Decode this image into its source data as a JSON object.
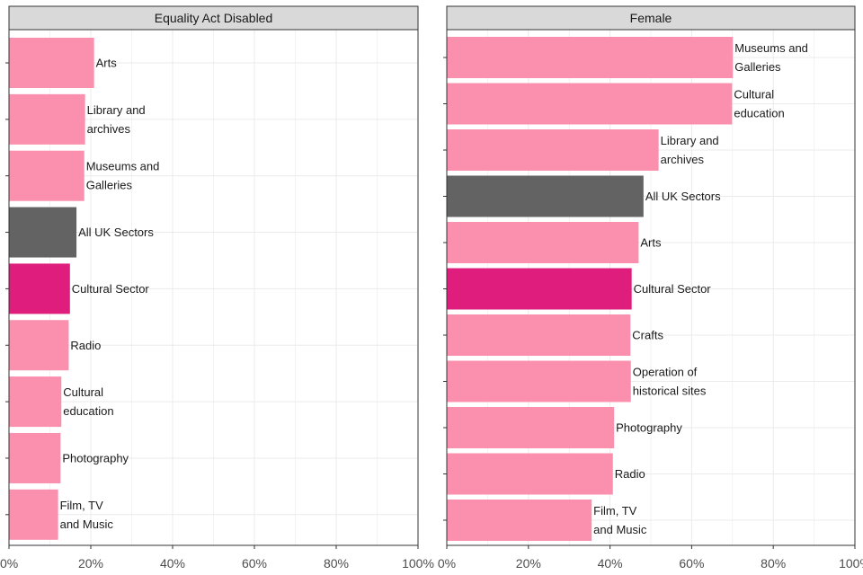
{
  "chart_data": [
    {
      "type": "bar",
      "orientation": "horizontal",
      "title": "Equality Act Disabled",
      "xlim": [
        0,
        100
      ],
      "x_ticks": [
        "0%",
        "20%",
        "40%",
        "60%",
        "80%",
        "100%"
      ],
      "grid": true,
      "categories": [
        "Arts",
        "Library and archives",
        "Museums and Galleries",
        "All UK Sectors",
        "Cultural Sector",
        "Radio",
        "Cultural education",
        "Photography",
        "Film, TV and Music"
      ],
      "values": [
        20.8,
        18.6,
        18.4,
        16.5,
        14.9,
        14.6,
        12.8,
        12.6,
        12.0
      ],
      "highlight": [
        "default",
        "default",
        "default",
        "all",
        "cultural",
        "default",
        "default",
        "default",
        "default"
      ]
    },
    {
      "type": "bar",
      "orientation": "horizontal",
      "title": "Female",
      "xlim": [
        0,
        100
      ],
      "x_ticks": [
        "0%",
        "20%",
        "40%",
        "60%",
        "80%",
        "100%"
      ],
      "grid": true,
      "categories": [
        "Museums and Galleries",
        "Cultural education",
        "Library and archives",
        "All UK Sectors",
        "Arts",
        "Cultural Sector",
        "Crafts",
        "Operation of historical sites",
        "Photography",
        "Radio",
        "Film, TV and Music"
      ],
      "values": [
        70.1,
        69.9,
        51.9,
        48.2,
        47.0,
        45.3,
        45.0,
        45.1,
        41.0,
        40.7,
        35.5
      ],
      "highlight": [
        "default",
        "default",
        "default",
        "all",
        "default",
        "cultural",
        "default",
        "default",
        "default",
        "default",
        "default"
      ]
    }
  ],
  "colors": {
    "default": "#fb8fae",
    "all": "#636363",
    "cultural": "#de1d7c",
    "strip_fill": "#d9d9d9",
    "grid": "#ebebeb",
    "panel_border": "#333333",
    "text": "#1a1a1a"
  }
}
